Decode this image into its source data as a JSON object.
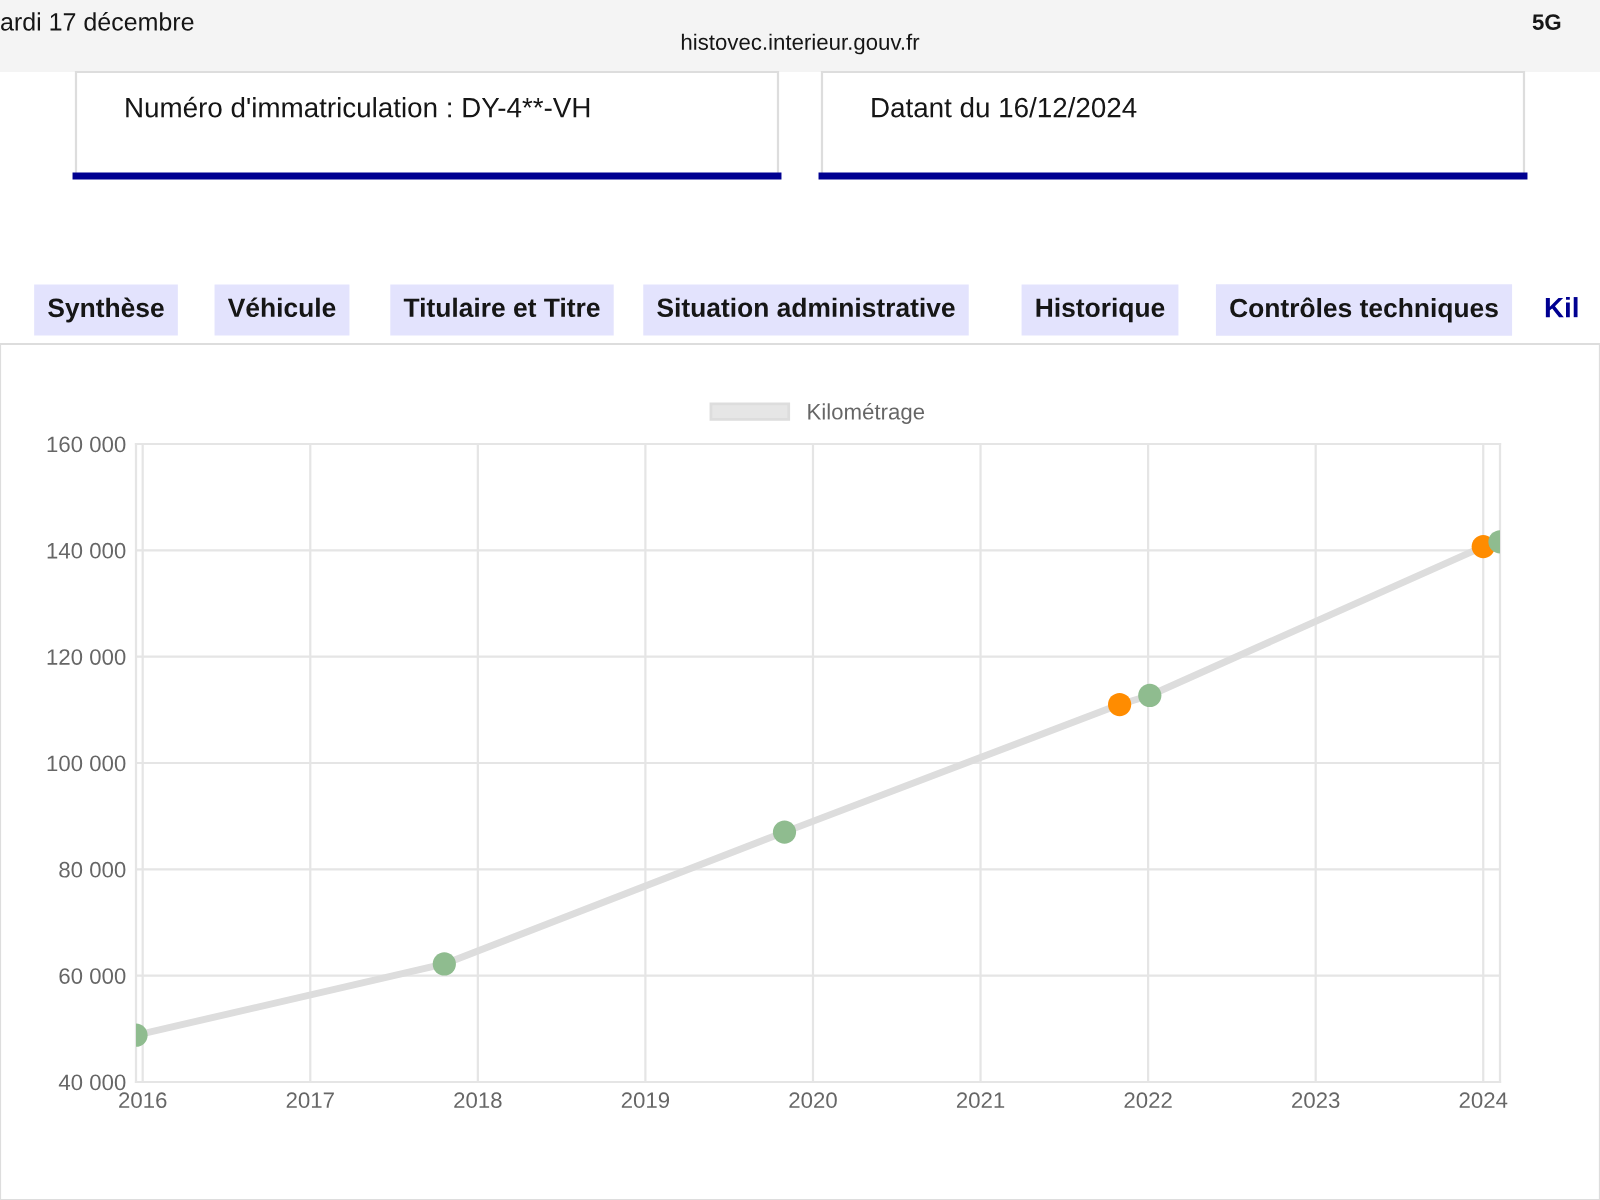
{
  "chart_data": {
    "type": "line",
    "x": [
      2015.96,
      2017.8,
      2019.83,
      2021.83,
      2022.01,
      2024.0,
      2024.1
    ],
    "series": [
      {
        "name": "Kilométrage",
        "color": "#dddddd",
        "colors": [
          "#8fbc8f",
          "#8fbc8f",
          "#8fbc8f",
          "#ff8c00",
          "#8fbc8f",
          "#ff8c00",
          "#8fbc8f"
        ],
        "values": [
          48800,
          62200,
          87000,
          111000,
          112700,
          140700,
          141600
        ]
      }
    ],
    "xlim": [
      2015.96,
      2024.1
    ],
    "xticks": [
      2016,
      2017,
      2018,
      2019,
      2020,
      2021,
      2022,
      2023,
      2024
    ],
    "ylim": [
      40000,
      160000
    ],
    "yticks": [
      {
        "value": 40000,
        "label": "40 000"
      },
      {
        "value": 60000,
        "label": "60 000"
      },
      {
        "value": 80000,
        "label": "80 000"
      },
      {
        "value": 100000,
        "label": "100 000"
      },
      {
        "value": 120000,
        "label": "120 000"
      },
      {
        "value": 140000,
        "label": "140 000"
      },
      {
        "value": 160000,
        "label": "160 000"
      }
    ],
    "grid": true,
    "legend": "top",
    "marker": "circle",
    "line_style": "solid",
    "annotations": [
      "ardi 17 décembre",
      "histovec.interieur.gouv.fr",
      "5G",
      "Numéro d'immatriculation : DY-4**-VH",
      "Datant du 16/12/2024",
      "Synthèse",
      "Véhicule",
      "Titulaire et Titre",
      "Situation administrative",
      "Historique",
      "Contrôles techniques",
      "Kil"
    ]
  }
}
